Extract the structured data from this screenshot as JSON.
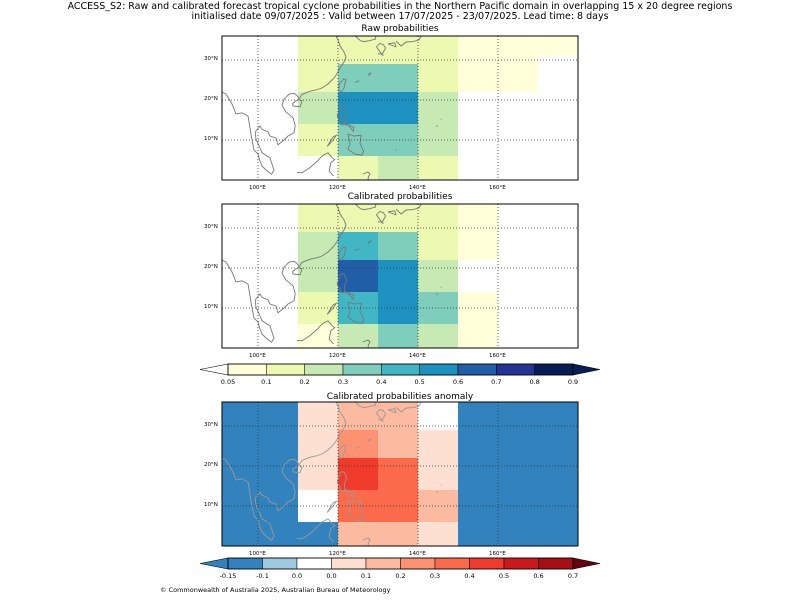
{
  "header": {
    "line1": "ACCESS_S2: Raw and calibrated forecast tropical cyclone probabilities in the Northern Pacific domain in overlapping 15 x 20 degree regions",
    "line2": "initialised date 09/07/2025 :  Valid between 17/07/2025 - 23/07/2025. Lead time: 8 days"
  },
  "panels": {
    "raw": {
      "title": "Raw probabilities"
    },
    "cal": {
      "title": "Calibrated probabilities"
    },
    "anom": {
      "title": "Calibrated probabilities anomaly"
    }
  },
  "axes": {
    "x_ticks": [
      "100°E",
      "120°E",
      "140°E",
      "160°E"
    ],
    "y_ticks": [
      "30°N",
      "20°N",
      "10°N"
    ]
  },
  "colorbar_prob": {
    "labels": [
      "0.05",
      "0.1",
      "0.2",
      "0.3",
      "0.4",
      "0.5",
      "0.6",
      "0.7",
      "0.8",
      "0.9"
    ],
    "colors": [
      "#ffffd9",
      "#edf8b1",
      "#c7e9b4",
      "#7fcdbb",
      "#41b6c4",
      "#1d91c0",
      "#225ea8",
      "#253494",
      "#081d58"
    ]
  },
  "colorbar_anom": {
    "labels": [
      "-0.15",
      "-0.1",
      "0.0",
      "0.0",
      "0.1",
      "0.2",
      "0.3",
      "0.4",
      "0.5",
      "0.6",
      "0.7"
    ],
    "colors": [
      "#3182bd",
      "#9ecae1",
      "#ffffff",
      "#fee0d2",
      "#fcbba1",
      "#fc9272",
      "#fb6a4a",
      "#ef3b2c",
      "#cb181d",
      "#a50f15"
    ]
  },
  "map_data": {
    "lon_range": [
      91,
      180
    ],
    "lat_range": [
      0,
      36
    ],
    "raw_cells": [
      {
        "lon0": 110,
        "lon1": 120,
        "lat0": 29,
        "lat1": 36,
        "v": 0.15
      },
      {
        "lon0": 120,
        "lon1": 130,
        "lat0": 29,
        "lat1": 36,
        "v": 0.15
      },
      {
        "lon0": 130,
        "lon1": 140,
        "lat0": 29,
        "lat1": 36,
        "v": 0.15
      },
      {
        "lon0": 140,
        "lon1": 150,
        "lat0": 31,
        "lat1": 36,
        "v": 0.15
      },
      {
        "lon0": 150,
        "lon1": 160,
        "lat0": 31,
        "lat1": 36,
        "v": 0.07
      },
      {
        "lon0": 160,
        "lon1": 180,
        "lat0": 31,
        "lat1": 36,
        "v": 0.07
      },
      {
        "lon0": 140,
        "lon1": 150,
        "lat0": 22,
        "lat1": 31,
        "v": 0.15
      },
      {
        "lon0": 150,
        "lon1": 170,
        "lat0": 22,
        "lat1": 31,
        "v": 0.07
      },
      {
        "lon0": 110,
        "lon1": 120,
        "lat0": 22,
        "lat1": 29,
        "v": 0.15
      },
      {
        "lon0": 120,
        "lon1": 140,
        "lat0": 22,
        "lat1": 29,
        "v": 0.35
      },
      {
        "lon0": 110,
        "lon1": 120,
        "lat0": 14,
        "lat1": 22,
        "v": 0.25
      },
      {
        "lon0": 120,
        "lon1": 140,
        "lat0": 14,
        "lat1": 22,
        "v": 0.55
      },
      {
        "lon0": 140,
        "lon1": 150,
        "lat0": 6,
        "lat1": 22,
        "v": 0.25
      },
      {
        "lon0": 110,
        "lon1": 120,
        "lat0": 6,
        "lat1": 14,
        "v": 0.15
      },
      {
        "lon0": 120,
        "lon1": 140,
        "lat0": 6,
        "lat1": 14,
        "v": 0.35
      },
      {
        "lon0": 120,
        "lon1": 130,
        "lat0": 0,
        "lat1": 6,
        "v": 0.15
      },
      {
        "lon0": 130,
        "lon1": 140,
        "lat0": 0,
        "lat1": 6,
        "v": 0.25
      },
      {
        "lon0": 140,
        "lon1": 150,
        "lat0": 0,
        "lat1": 6,
        "v": 0.15
      }
    ],
    "cal_cells": [
      {
        "lon0": 110,
        "lon1": 120,
        "lat0": 29,
        "lat1": 36,
        "v": 0.15
      },
      {
        "lon0": 120,
        "lon1": 130,
        "lat0": 29,
        "lat1": 36,
        "v": 0.15
      },
      {
        "lon0": 130,
        "lon1": 140,
        "lat0": 29,
        "lat1": 36,
        "v": 0.15
      },
      {
        "lon0": 140,
        "lon1": 150,
        "lat0": 29,
        "lat1": 36,
        "v": 0.15
      },
      {
        "lon0": 150,
        "lon1": 160,
        "lat0": 29,
        "lat1": 36,
        "v": 0.07
      },
      {
        "lon0": 110,
        "lon1": 120,
        "lat0": 22,
        "lat1": 29,
        "v": 0.25
      },
      {
        "lon0": 120,
        "lon1": 130,
        "lat0": 22,
        "lat1": 29,
        "v": 0.45
      },
      {
        "lon0": 130,
        "lon1": 140,
        "lat0": 22,
        "lat1": 29,
        "v": 0.35
      },
      {
        "lon0": 140,
        "lon1": 150,
        "lat0": 22,
        "lat1": 29,
        "v": 0.15
      },
      {
        "lon0": 150,
        "lon1": 160,
        "lat0": 22,
        "lat1": 29,
        "v": 0.07
      },
      {
        "lon0": 110,
        "lon1": 120,
        "lat0": 14,
        "lat1": 22,
        "v": 0.25
      },
      {
        "lon0": 120,
        "lon1": 130,
        "lat0": 14,
        "lat1": 22,
        "v": 0.65
      },
      {
        "lon0": 130,
        "lon1": 140,
        "lat0": 14,
        "lat1": 22,
        "v": 0.55
      },
      {
        "lon0": 140,
        "lon1": 150,
        "lat0": 14,
        "lat1": 22,
        "v": 0.25
      },
      {
        "lon0": 110,
        "lon1": 120,
        "lat0": 6,
        "lat1": 14,
        "v": 0.15
      },
      {
        "lon0": 120,
        "lon1": 130,
        "lat0": 6,
        "lat1": 14,
        "v": 0.45
      },
      {
        "lon0": 130,
        "lon1": 140,
        "lat0": 6,
        "lat1": 14,
        "v": 0.55
      },
      {
        "lon0": 140,
        "lon1": 150,
        "lat0": 6,
        "lat1": 14,
        "v": 0.35
      },
      {
        "lon0": 150,
        "lon1": 160,
        "lat0": 6,
        "lat1": 14,
        "v": 0.07
      },
      {
        "lon0": 110,
        "lon1": 120,
        "lat0": 0,
        "lat1": 6,
        "v": 0.07
      },
      {
        "lon0": 120,
        "lon1": 130,
        "lat0": 0,
        "lat1": 6,
        "v": 0.25
      },
      {
        "lon0": 130,
        "lon1": 140,
        "lat0": 0,
        "lat1": 6,
        "v": 0.35
      },
      {
        "lon0": 140,
        "lon1": 150,
        "lat0": 0,
        "lat1": 6,
        "v": 0.25
      },
      {
        "lon0": 150,
        "lon1": 160,
        "lat0": 0,
        "lat1": 6,
        "v": 0.07
      }
    ],
    "anom_cells": [
      {
        "lon0": 91,
        "lon1": 110,
        "lat0": 0,
        "lat1": 36,
        "v": -0.2
      },
      {
        "lon0": 160,
        "lon1": 180,
        "lat0": 0,
        "lat1": 36,
        "v": -0.2
      },
      {
        "lon0": 150,
        "lon1": 160,
        "lat0": 14,
        "lat1": 22,
        "v": -0.2
      },
      {
        "lon0": 150,
        "lon1": 160,
        "lat0": 22,
        "lat1": 36,
        "v": -0.12
      },
      {
        "lon0": 150,
        "lon1": 160,
        "lat0": 0,
        "lat1": 14,
        "v": -0.12
      },
      {
        "lon0": 110,
        "lon1": 120,
        "lat0": 0,
        "lat1": 6,
        "v": -0.12
      },
      {
        "lon0": 110,
        "lon1": 120,
        "lat0": 22,
        "lat1": 29,
        "v": 0.05
      },
      {
        "lon0": 110,
        "lon1": 120,
        "lat0": 14,
        "lat1": 22,
        "v": 0.05
      },
      {
        "lon0": 110,
        "lon1": 120,
        "lat0": 29,
        "lat1": 36,
        "v": 0.02
      },
      {
        "lon0": 120,
        "lon1": 130,
        "lat0": 29,
        "lat1": 36,
        "v": 0.15
      },
      {
        "lon0": 130,
        "lon1": 140,
        "lat0": 29,
        "lat1": 36,
        "v": 0.15
      },
      {
        "lon0": 120,
        "lon1": 130,
        "lat0": 22,
        "lat1": 29,
        "v": 0.25
      },
      {
        "lon0": 130,
        "lon1": 140,
        "lat0": 22,
        "lat1": 29,
        "v": 0.15
      },
      {
        "lon0": 140,
        "lon1": 150,
        "lat0": 22,
        "lat1": 29,
        "v": 0.05
      },
      {
        "lon0": 120,
        "lon1": 130,
        "lat0": 14,
        "lat1": 22,
        "v": 0.45
      },
      {
        "lon0": 130,
        "lon1": 140,
        "lat0": 14,
        "lat1": 22,
        "v": 0.35
      },
      {
        "lon0": 140,
        "lon1": 150,
        "lat0": 14,
        "lat1": 22,
        "v": 0.05
      },
      {
        "lon0": 120,
        "lon1": 130,
        "lat0": 6,
        "lat1": 14,
        "v": 0.35
      },
      {
        "lon0": 130,
        "lon1": 140,
        "lat0": 6,
        "lat1": 14,
        "v": 0.35
      },
      {
        "lon0": 140,
        "lon1": 150,
        "lat0": 6,
        "lat1": 14,
        "v": 0.15
      },
      {
        "lon0": 120,
        "lon1": 130,
        "lat0": 0,
        "lat1": 6,
        "v": 0.15
      },
      {
        "lon0": 130,
        "lon1": 140,
        "lat0": 0,
        "lat1": 6,
        "v": 0.15
      },
      {
        "lon0": 140,
        "lon1": 150,
        "lat0": 0,
        "lat1": 6,
        "v": 0.05
      }
    ]
  },
  "footer": {
    "text": "© Commonwealth of Australia 2025, Australian Bureau of Meteorology"
  }
}
